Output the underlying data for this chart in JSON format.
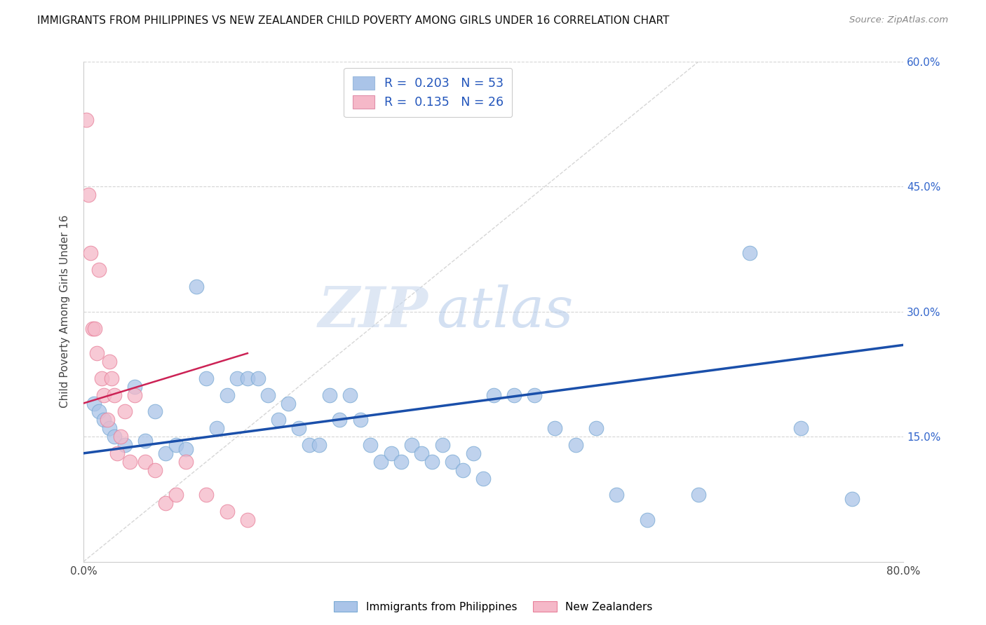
{
  "title": "IMMIGRANTS FROM PHILIPPINES VS NEW ZEALANDER CHILD POVERTY AMONG GIRLS UNDER 16 CORRELATION CHART",
  "source": "Source: ZipAtlas.com",
  "ylabel": "Child Poverty Among Girls Under 16",
  "xlim": [
    0,
    80
  ],
  "ylim": [
    0,
    60
  ],
  "series1_name": "Immigrants from Philippines",
  "series1_R": "0.203",
  "series1_N": "53",
  "series1_color": "#aac4e8",
  "series1_edge_color": "#7aaad4",
  "series2_name": "New Zealanders",
  "series2_R": "0.135",
  "series2_N": "26",
  "series2_color": "#f5b8c8",
  "series2_edge_color": "#e8809a",
  "trend1_color": "#1a4faa",
  "trend2_color": "#cc2255",
  "watermark_zip": "ZIP",
  "watermark_atlas": "atlas",
  "series1_x": [
    1.0,
    1.5,
    2.0,
    2.5,
    3.0,
    4.0,
    5.0,
    6.0,
    7.0,
    8.0,
    9.0,
    10.0,
    11.0,
    12.0,
    13.0,
    14.0,
    15.0,
    16.0,
    17.0,
    18.0,
    19.0,
    20.0,
    21.0,
    22.0,
    23.0,
    24.0,
    25.0,
    26.0,
    27.0,
    28.0,
    29.0,
    30.0,
    31.0,
    32.0,
    33.0,
    34.0,
    35.0,
    36.0,
    37.0,
    38.0,
    39.0,
    40.0,
    42.0,
    44.0,
    46.0,
    48.0,
    50.0,
    52.0,
    55.0,
    60.0,
    65.0,
    70.0,
    75.0
  ],
  "series1_y": [
    19.0,
    18.0,
    17.0,
    16.0,
    15.0,
    14.0,
    21.0,
    14.5,
    18.0,
    13.0,
    14.0,
    13.5,
    33.0,
    22.0,
    16.0,
    20.0,
    22.0,
    22.0,
    22.0,
    20.0,
    17.0,
    19.0,
    16.0,
    14.0,
    14.0,
    20.0,
    17.0,
    20.0,
    17.0,
    14.0,
    12.0,
    13.0,
    12.0,
    14.0,
    13.0,
    12.0,
    14.0,
    12.0,
    11.0,
    13.0,
    10.0,
    20.0,
    20.0,
    20.0,
    16.0,
    14.0,
    16.0,
    8.0,
    5.0,
    8.0,
    37.0,
    16.0,
    7.5
  ],
  "series2_x": [
    0.3,
    0.5,
    0.7,
    0.9,
    1.1,
    1.3,
    1.5,
    1.8,
    2.0,
    2.3,
    2.5,
    2.7,
    3.0,
    3.3,
    3.6,
    4.0,
    4.5,
    5.0,
    6.0,
    7.0,
    8.0,
    9.0,
    10.0,
    12.0,
    14.0,
    16.0
  ],
  "series2_y": [
    53.0,
    44.0,
    37.0,
    28.0,
    28.0,
    25.0,
    35.0,
    22.0,
    20.0,
    17.0,
    24.0,
    22.0,
    20.0,
    13.0,
    15.0,
    18.0,
    12.0,
    20.0,
    12.0,
    11.0,
    7.0,
    8.0,
    12.0,
    8.0,
    6.0,
    5.0
  ],
  "trend1_x_start": 0,
  "trend1_x_end": 80,
  "trend1_y_start": 13.0,
  "trend1_y_end": 26.0,
  "trend2_x_start": 0,
  "trend2_x_end": 16,
  "trend2_y_start": 19.0,
  "trend2_y_end": 25.0
}
